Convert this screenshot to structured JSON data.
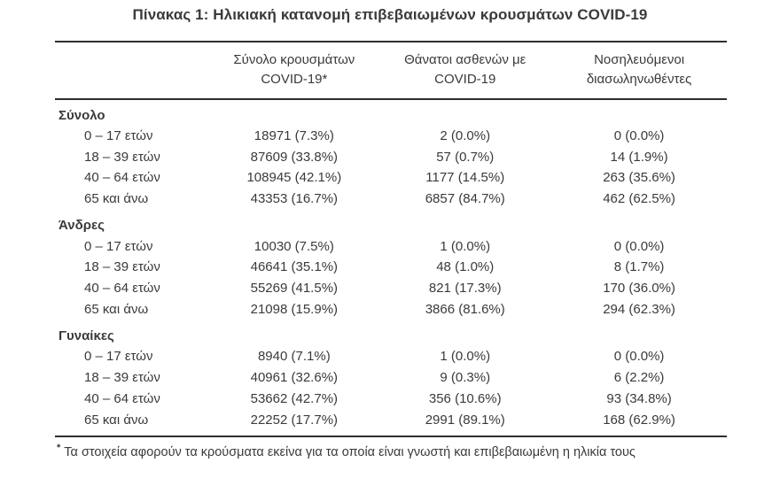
{
  "page": {
    "title": "Πίνακας 1: Ηλικιακή κατανομή επιβεβαιωμένων κρουσμάτων COVID-19",
    "footnote_marker": "*",
    "footnote": "Τα στοιχεία αφορούν τα κρούσματα εκείνα για τα οποία είναι γνωστή και επιβεβαιωμένη η ηλικία τους"
  },
  "colors": {
    "text": "#3a3a3a",
    "rule": "#2d2d2d",
    "background": "#ffffff"
  },
  "table": {
    "headers": [
      {
        "line1": "Σύνολο κρουσμάτων",
        "line2": "COVID-19*"
      },
      {
        "line1": "Θάνατοι ασθενών με",
        "line2": "COVID-19"
      },
      {
        "line1": "Νοσηλευόμενοι",
        "line2": "διασωληνωθέντες"
      }
    ],
    "sections": [
      {
        "label": "Σύνολο",
        "rows": [
          {
            "label": "0 – 17 ετών",
            "cases": "18971 (7.3%)",
            "deaths": "2 (0.0%)",
            "intubated": "0 (0.0%)"
          },
          {
            "label": "18 – 39 ετών",
            "cases": "87609 (33.8%)",
            "deaths": "57 (0.7%)",
            "intubated": "14 (1.9%)"
          },
          {
            "label": "40 – 64 ετών",
            "cases": "108945 (42.1%)",
            "deaths": "1177 (14.5%)",
            "intubated": "263 (35.6%)"
          },
          {
            "label": "65 και άνω",
            "cases": "43353 (16.7%)",
            "deaths": "6857 (84.7%)",
            "intubated": "462 (62.5%)"
          }
        ]
      },
      {
        "label": "Άνδρες",
        "rows": [
          {
            "label": "0 – 17 ετών",
            "cases": "10030 (7.5%)",
            "deaths": "1 (0.0%)",
            "intubated": "0 (0.0%)"
          },
          {
            "label": "18 – 39 ετών",
            "cases": "46641 (35.1%)",
            "deaths": "48 (1.0%)",
            "intubated": "8 (1.7%)"
          },
          {
            "label": "40 – 64 ετών",
            "cases": "55269 (41.5%)",
            "deaths": "821 (17.3%)",
            "intubated": "170 (36.0%)"
          },
          {
            "label": "65 και άνω",
            "cases": "21098 (15.9%)",
            "deaths": "3866 (81.6%)",
            "intubated": "294 (62.3%)"
          }
        ]
      },
      {
        "label": "Γυναίκες",
        "rows": [
          {
            "label": "0 – 17 ετών",
            "cases": "8940 (7.1%)",
            "deaths": "1 (0.0%)",
            "intubated": "0 (0.0%)"
          },
          {
            "label": "18 – 39 ετών",
            "cases": "40961 (32.6%)",
            "deaths": "9 (0.3%)",
            "intubated": "6 (2.2%)"
          },
          {
            "label": "40 – 64 ετών",
            "cases": "53662 (42.7%)",
            "deaths": "356 (10.6%)",
            "intubated": "93 (34.8%)"
          },
          {
            "label": "65 και άνω",
            "cases": "22252 (17.7%)",
            "deaths": "2991 (89.1%)",
            "intubated": "168 (62.9%)"
          }
        ]
      }
    ]
  }
}
